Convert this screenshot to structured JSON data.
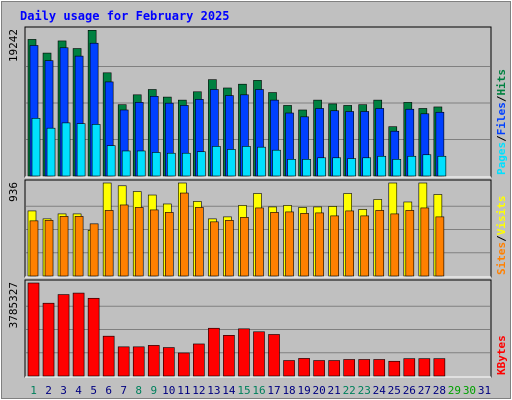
{
  "title": "Daily usage for February 2025",
  "colors": {
    "background": "#C0C0C0",
    "title": "#0000FF",
    "hits": "#008040",
    "files": "#0040FF",
    "pages": "#00E0FF",
    "visits": "#FFFF00",
    "sites": "#FF8000",
    "kbytes": "#FF0000",
    "weekend_day": "#00805c",
    "weekday": "#000080",
    "future_day": "#00A000",
    "grid": "#808080"
  },
  "chart_data": [
    {
      "type": "bar",
      "panel": "hits-files-pages",
      "ymax_label": "19242",
      "ymax": 19242,
      "legend": [
        "Pages",
        "Files",
        "Hits"
      ],
      "categories": [
        "1",
        "2",
        "3",
        "4",
        "5",
        "6",
        "7",
        "8",
        "9",
        "10",
        "11",
        "12",
        "13",
        "14",
        "15",
        "16",
        "17",
        "18",
        "19",
        "20",
        "21",
        "22",
        "23",
        "24",
        "25",
        "26",
        "27",
        "28"
      ],
      "series": [
        {
          "name": "Hits",
          "values": [
            18000,
            16200,
            17800,
            16800,
            19200,
            13600,
            9400,
            10700,
            11400,
            10400,
            10000,
            11100,
            12700,
            11600,
            12100,
            12600,
            11000,
            9300,
            8700,
            10000,
            9500,
            9300,
            9400,
            10000,
            6500,
            9700,
            8900,
            9100
          ]
        },
        {
          "name": "Files",
          "values": [
            17200,
            15200,
            16900,
            15800,
            17500,
            12400,
            8700,
            9700,
            10500,
            9600,
            9300,
            10100,
            11400,
            10600,
            10700,
            11400,
            10000,
            8300,
            7800,
            8900,
            8600,
            8500,
            8500,
            8900,
            5900,
            8800,
            8200,
            8400
          ]
        },
        {
          "name": "Pages",
          "values": [
            7600,
            6300,
            7000,
            6900,
            6800,
            4000,
            3300,
            3300,
            3100,
            3000,
            3000,
            3200,
            3900,
            3500,
            3900,
            3800,
            3400,
            2200,
            2200,
            2400,
            2400,
            2300,
            2400,
            2600,
            2200,
            2600,
            2800,
            2600
          ]
        }
      ]
    },
    {
      "type": "bar",
      "panel": "visits-sites",
      "ymax_label": "936",
      "ymax": 936,
      "legend": [
        "Sites",
        "Visits"
      ],
      "categories": [
        "1",
        "2",
        "3",
        "4",
        "5",
        "6",
        "7",
        "8",
        "9",
        "10",
        "11",
        "12",
        "13",
        "14",
        "15",
        "16",
        "17",
        "18",
        "19",
        "20",
        "21",
        "22",
        "23",
        "24",
        "25",
        "26",
        "27",
        "28"
      ],
      "series": [
        {
          "name": "Visits",
          "values": [
            655,
            575,
            625,
            625,
            460,
            936,
            908,
            850,
            815,
            725,
            936,
            750,
            575,
            595,
            710,
            830,
            695,
            710,
            690,
            695,
            700,
            830,
            670,
            770,
            936,
            745,
            936,
            820
          ]
        },
        {
          "name": "Sites",
          "values": [
            555,
            560,
            600,
            600,
            525,
            660,
            715,
            690,
            665,
            640,
            835,
            690,
            545,
            560,
            590,
            685,
            640,
            645,
            630,
            635,
            605,
            655,
            605,
            660,
            625,
            660,
            685,
            595
          ]
        }
      ]
    },
    {
      "type": "bar",
      "panel": "kbytes",
      "ymax_label": "3785327",
      "ymax": 3785327,
      "legend": [
        "KBytes"
      ],
      "categories": [
        "1",
        "2",
        "3",
        "4",
        "5",
        "6",
        "7",
        "8",
        "9",
        "10",
        "11",
        "12",
        "13",
        "14",
        "15",
        "16",
        "17",
        "18",
        "19",
        "20",
        "21",
        "22",
        "23",
        "24",
        "25",
        "26",
        "27",
        "28"
      ],
      "series": [
        {
          "name": "KBytes",
          "values": [
            3785327,
            2963000,
            3315000,
            3375000,
            3164000,
            1621000,
            1187000,
            1187000,
            1246000,
            1158000,
            938000,
            1304000,
            1944000,
            1656000,
            1920000,
            1800000,
            1690000,
            630000,
            716000,
            630000,
            630000,
            672000,
            672000,
            672000,
            600000,
            707000,
            707000,
            707000
          ]
        }
      ]
    }
  ],
  "x_axis": {
    "labels": [
      "1",
      "2",
      "3",
      "4",
      "5",
      "6",
      "7",
      "8",
      "9",
      "10",
      "11",
      "12",
      "13",
      "14",
      "15",
      "16",
      "17",
      "18",
      "19",
      "20",
      "21",
      "22",
      "23",
      "24",
      "25",
      "26",
      "27",
      "28",
      "29",
      "30",
      "31"
    ],
    "label_colors": [
      "weekend_day",
      "weekday",
      "weekday",
      "weekday",
      "weekday",
      "weekday",
      "weekday",
      "weekend_day",
      "weekend_day",
      "weekday",
      "weekday",
      "weekday",
      "weekday",
      "weekday",
      "weekend_day",
      "weekend_day",
      "weekday",
      "weekday",
      "weekday",
      "weekday",
      "weekday",
      "weekend_day",
      "weekend_day",
      "weekday",
      "weekday",
      "weekday",
      "weekday",
      "weekday",
      "future_day",
      "future_day",
      "weekday"
    ]
  }
}
